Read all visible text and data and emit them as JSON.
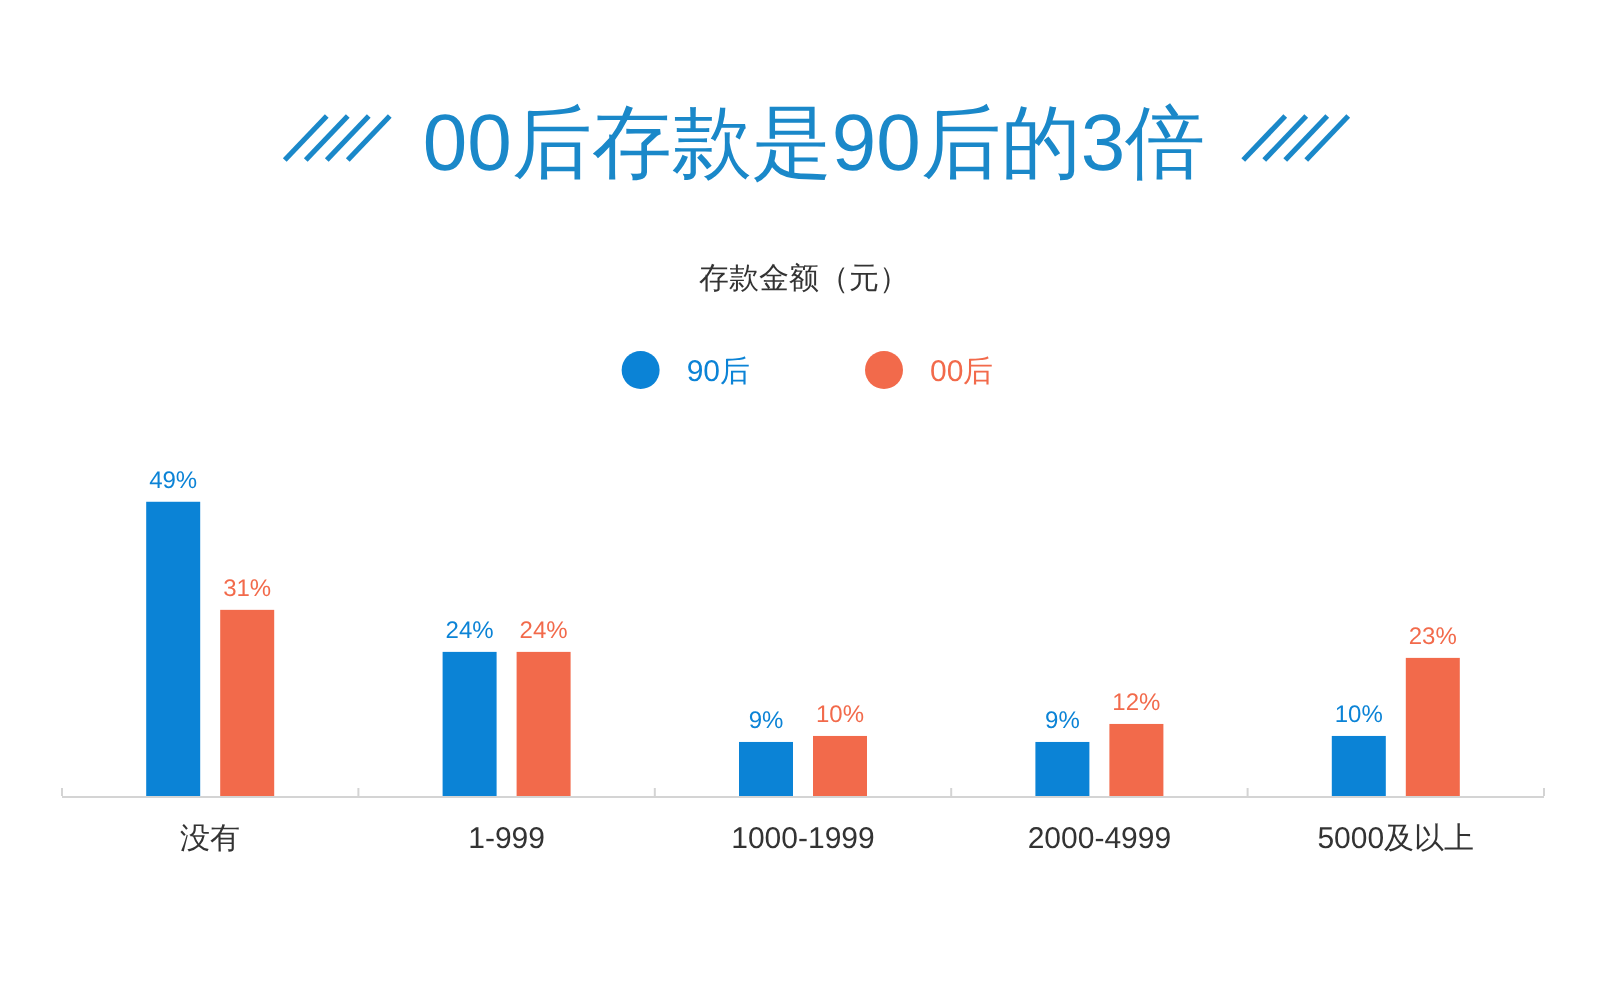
{
  "chart_data": {
    "type": "bar",
    "title": "00后存款是90后的3倍",
    "subtitle": "存款金额（元）",
    "categories": [
      "没有",
      "1-999",
      "1000-1999",
      "2000-4999",
      "5000及以上"
    ],
    "series": [
      {
        "name": "90后",
        "color": "#0b83d6",
        "values": [
          49,
          24,
          9,
          9,
          10
        ],
        "value_labels": [
          "49%",
          "24%",
          "9%",
          "9%",
          "10%"
        ]
      },
      {
        "name": "00后",
        "color": "#f26a4b",
        "values": [
          31,
          24,
          10,
          12,
          23
        ],
        "value_labels": [
          "31%",
          "24%",
          "10%",
          "12%",
          "23%"
        ]
      }
    ],
    "legend": "top",
    "tick_labels": "x"
  }
}
